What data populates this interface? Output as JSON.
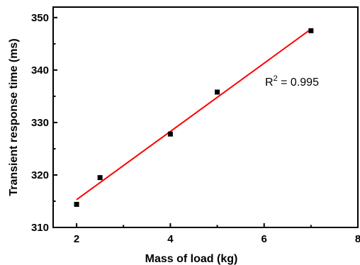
{
  "chart_data": {
    "type": "scatter",
    "xlabel": "Mass of load (kg)",
    "ylabel": "Transient response time (ms)",
    "xlim": [
      1.5,
      8
    ],
    "ylim": [
      310,
      352
    ],
    "x_ticks": [
      2,
      4,
      6,
      8
    ],
    "y_ticks": [
      310,
      320,
      330,
      340,
      350
    ],
    "grid": false,
    "series": [
      {
        "points": [
          {
            "x": 2,
            "y": 314.4
          },
          {
            "x": 2.5,
            "y": 319.5
          },
          {
            "x": 4,
            "y": 327.8
          },
          {
            "x": 5,
            "y": 335.8
          },
          {
            "x": 7,
            "y": 347.5
          }
        ],
        "color": "#000000"
      }
    ],
    "fit_line": {
      "x": [
        2,
        7
      ],
      "y": [
        315.3,
        347.8
      ],
      "color": "#ff0000"
    },
    "annotation": {
      "base": "R",
      "sup": "2",
      "text": " = 0.995"
    }
  }
}
